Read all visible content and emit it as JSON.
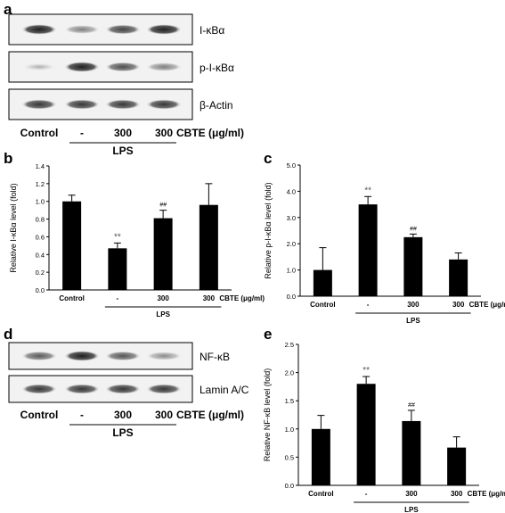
{
  "panels": {
    "a": {
      "label": "a",
      "blots": [
        {
          "name": "I-κBα",
          "intensity": [
            0.95,
            0.55,
            0.8,
            0.95
          ]
        },
        {
          "name": "p-I-κBα",
          "intensity": [
            0.35,
            0.95,
            0.75,
            0.55
          ]
        },
        {
          "name": "β-Actin",
          "intensity": [
            0.85,
            0.85,
            0.85,
            0.85
          ]
        }
      ],
      "lanes": [
        "Control",
        "-",
        "300",
        "300"
      ],
      "suffix": "CBTE (μg/ml)",
      "treatment": "LPS"
    },
    "d": {
      "label": "d",
      "blots": [
        {
          "name": "NF-κB",
          "intensity": [
            0.7,
            0.95,
            0.72,
            0.5
          ]
        },
        {
          "name": "Lamin A/C",
          "intensity": [
            0.85,
            0.85,
            0.85,
            0.85
          ]
        }
      ],
      "lanes": [
        "Control",
        "-",
        "300",
        "300"
      ],
      "suffix": "CBTE (μg/ml)",
      "treatment": "LPS"
    }
  },
  "chart_data": [
    {
      "panel": "b",
      "type": "bar",
      "categories": [
        "Control",
        "-",
        "300",
        "300"
      ],
      "values": [
        1.0,
        0.47,
        0.81,
        0.96
      ],
      "errors": [
        0.07,
        0.06,
        0.09,
        0.24
      ],
      "annotations": [
        "",
        "**",
        "##",
        ""
      ],
      "ylabel": "Relative I-κBα level (fold)",
      "ylim": [
        0,
        1.4
      ],
      "yticks": [
        "0.0",
        "0.2",
        "0.4",
        "0.6",
        "0.8",
        "1.0",
        "1.2",
        "1.4"
      ],
      "suffix": "CBTE (μg/ml)",
      "treatment": "LPS",
      "bar_color": "#000000"
    },
    {
      "panel": "c",
      "type": "bar",
      "categories": [
        "Control",
        "-",
        "300",
        "300"
      ],
      "values": [
        1.0,
        3.5,
        2.25,
        1.4
      ],
      "errors": [
        0.85,
        0.3,
        0.12,
        0.25
      ],
      "annotations": [
        "",
        "**",
        "##",
        ""
      ],
      "ylabel": "Relative p-I-κBα level (fold)",
      "ylim": [
        0,
        5.0
      ],
      "yticks": [
        "0.0",
        "1.0",
        "2.0",
        "3.0",
        "4.0",
        "5.0"
      ],
      "suffix": "CBTE (μg/ml)",
      "treatment": "LPS",
      "bar_color": "#000000"
    },
    {
      "panel": "e",
      "type": "bar",
      "categories": [
        "Control",
        "-",
        "300",
        "300"
      ],
      "values": [
        1.0,
        1.8,
        1.14,
        0.67
      ],
      "errors": [
        0.24,
        0.13,
        0.19,
        0.19
      ],
      "annotations": [
        "",
        "**",
        "##",
        ""
      ],
      "ylabel": "Relative NF-κB level (fold)",
      "ylim": [
        0,
        2.5
      ],
      "yticks": [
        "0.0",
        "0.5",
        "1.0",
        "1.5",
        "2.0",
        "2.5"
      ],
      "suffix": "CBTE (μg/ml)",
      "treatment": "LPS",
      "bar_color": "#000000"
    }
  ]
}
